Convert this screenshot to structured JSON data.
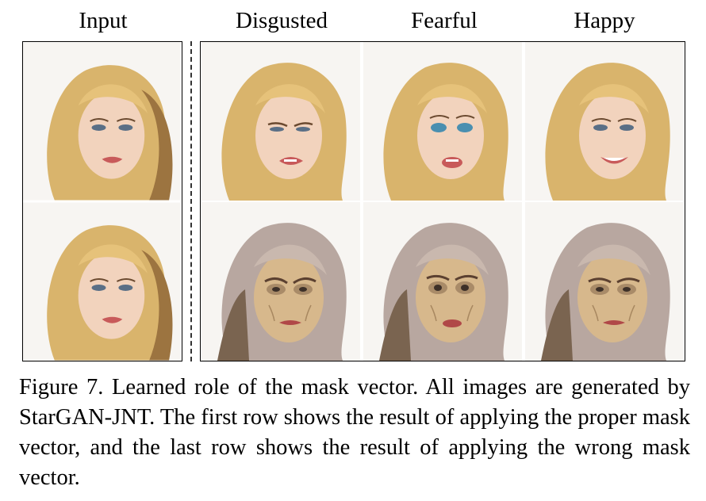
{
  "figure": {
    "column_headers": {
      "input": "Input",
      "col1": "Disgusted",
      "col2": "Fearful",
      "col3": "Happy"
    },
    "caption": "Figure 7. Learned role of the mask vector. All images are generated by StarGAN-JNT. The first row shows the result of applying the proper mask vector, and the last row shows the result of applying the wrong mask vector.",
    "rows": [
      {
        "cells": [
          "input-face",
          "disgusted-face",
          "fearful-face",
          "happy-face"
        ]
      },
      {
        "cells": [
          "input-face",
          "aged-disgusted-face",
          "aged-fearful-face",
          "aged-happy-face"
        ]
      }
    ],
    "colors": {
      "hair": "#d9b46c",
      "hair_dark": "#9c7440",
      "skin": "#f2d3bd",
      "aged_skin": "#d7b88c",
      "aged_hair": "#b8a7a0",
      "lips": "#c85a5a",
      "background": "#f7f5f2"
    }
  }
}
